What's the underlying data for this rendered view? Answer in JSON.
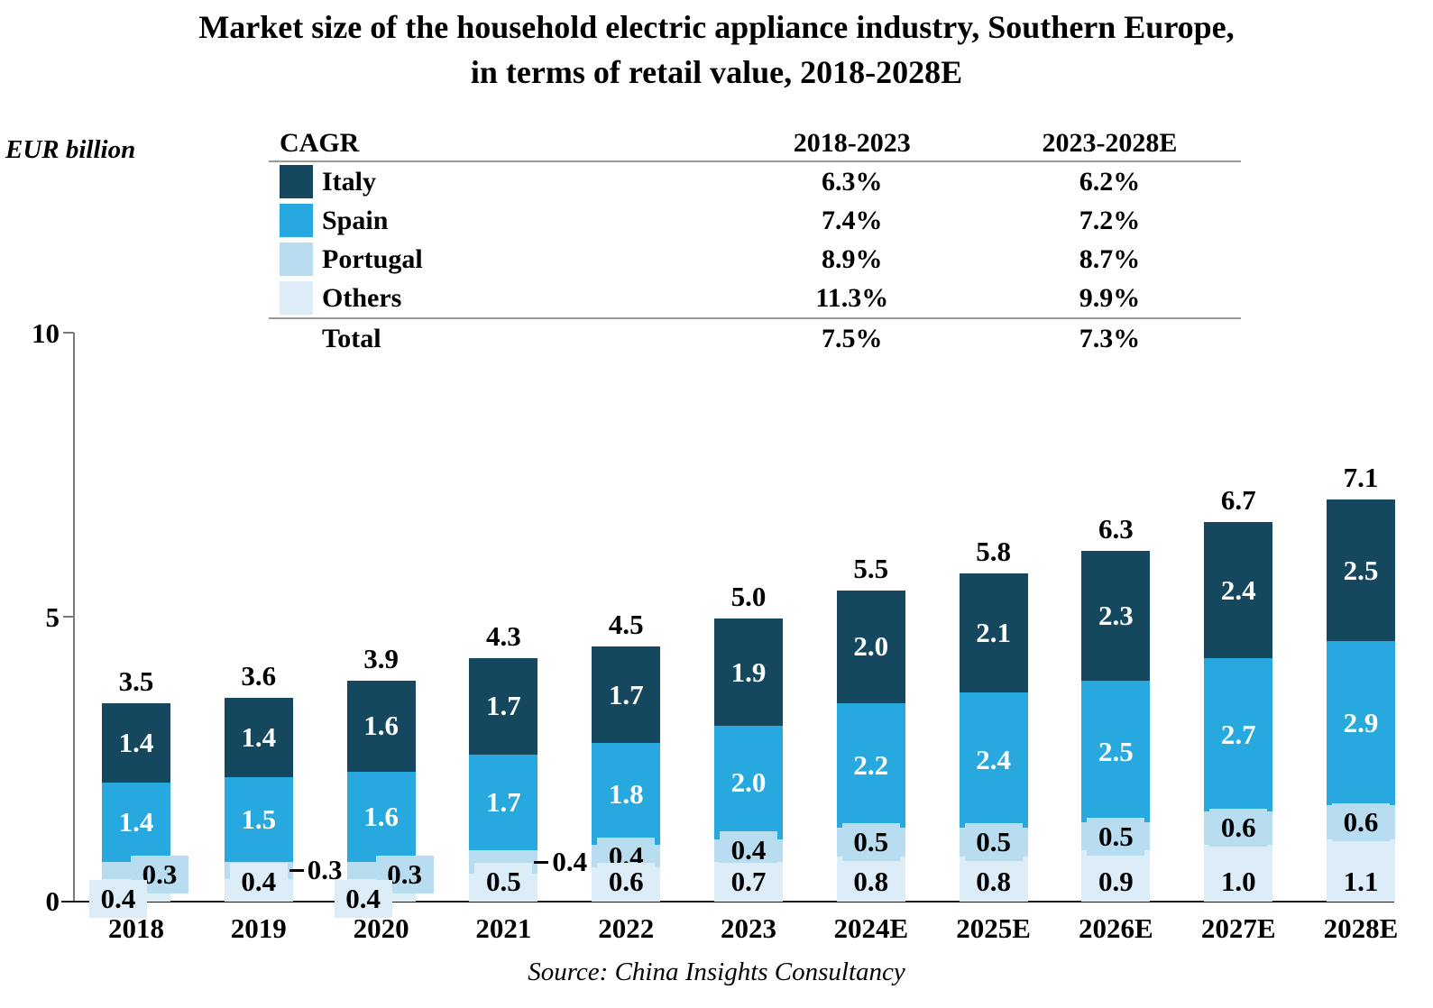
{
  "title": {
    "line1": "Market size of the household electric appliance industry, Southern Europe,",
    "line2": "in terms of retail value, 2018-2028E"
  },
  "y_axis": {
    "unit_label": "EUR billion",
    "ticks": [
      "0",
      "5",
      "10"
    ]
  },
  "cagr_table": {
    "header": {
      "col1": "CAGR",
      "col2": "2018-2023",
      "col3": "2023-2028E"
    },
    "rows": [
      {
        "label": "Italy",
        "series": "Italy",
        "v1": "6.3%",
        "v2": "6.2%"
      },
      {
        "label": "Spain",
        "series": "Spain",
        "v1": "7.4%",
        "v2": "7.2%"
      },
      {
        "label": "Portugal",
        "series": "Portugal",
        "v1": "8.9%",
        "v2": "8.7%"
      },
      {
        "label": "Others",
        "series": "Others",
        "v1": "11.3%",
        "v2": "9.9%"
      },
      {
        "label": "Total",
        "series": null,
        "v1": "7.5%",
        "v2": "7.3%"
      }
    ]
  },
  "chart_data": {
    "type": "bar",
    "stacked": true,
    "title": "Market size of the household electric appliance industry, Southern Europe, in terms of retail value, 2018-2028E",
    "ylabel": "EUR billion",
    "ylim": [
      0,
      10
    ],
    "grid": false,
    "legend_position": "table-top-left",
    "categories": [
      "2018",
      "2019",
      "2020",
      "2021",
      "2022",
      "2023",
      "2024E",
      "2025E",
      "2026E",
      "2027E",
      "2028E"
    ],
    "series": [
      {
        "name": "Others",
        "color": "#DCEDF8",
        "values": [
          0.4,
          0.4,
          0.4,
          0.5,
          0.6,
          0.7,
          0.8,
          0.8,
          0.9,
          1.0,
          1.1
        ]
      },
      {
        "name": "Portugal",
        "color": "#B9DDF0",
        "values": [
          0.3,
          0.3,
          0.3,
          0.4,
          0.4,
          0.4,
          0.5,
          0.5,
          0.5,
          0.6,
          0.6
        ]
      },
      {
        "name": "Spain",
        "color": "#27A9DF",
        "values": [
          1.4,
          1.5,
          1.6,
          1.7,
          1.8,
          2.0,
          2.2,
          2.4,
          2.5,
          2.7,
          2.9
        ]
      },
      {
        "name": "Italy",
        "color": "#15485E",
        "values": [
          1.4,
          1.4,
          1.6,
          1.7,
          1.7,
          1.9,
          2.0,
          2.1,
          2.3,
          2.4,
          2.5
        ]
      }
    ],
    "totals": [
      3.5,
      3.6,
      3.9,
      4.3,
      4.5,
      5.0,
      5.5,
      5.8,
      6.3,
      6.7,
      7.1
    ],
    "label_layout": {
      "portugal": [
        "box-right",
        "leader",
        "box-right",
        "leader",
        "chip",
        "chip",
        "chip",
        "chip",
        "chip",
        "chip",
        "chip"
      ],
      "others": [
        "box-left",
        "chip",
        "box-left",
        "chip",
        "chip",
        "chip",
        "chip",
        "chip",
        "chip",
        "chip",
        "chip"
      ]
    }
  },
  "source": "Source: China Insights Consultancy"
}
